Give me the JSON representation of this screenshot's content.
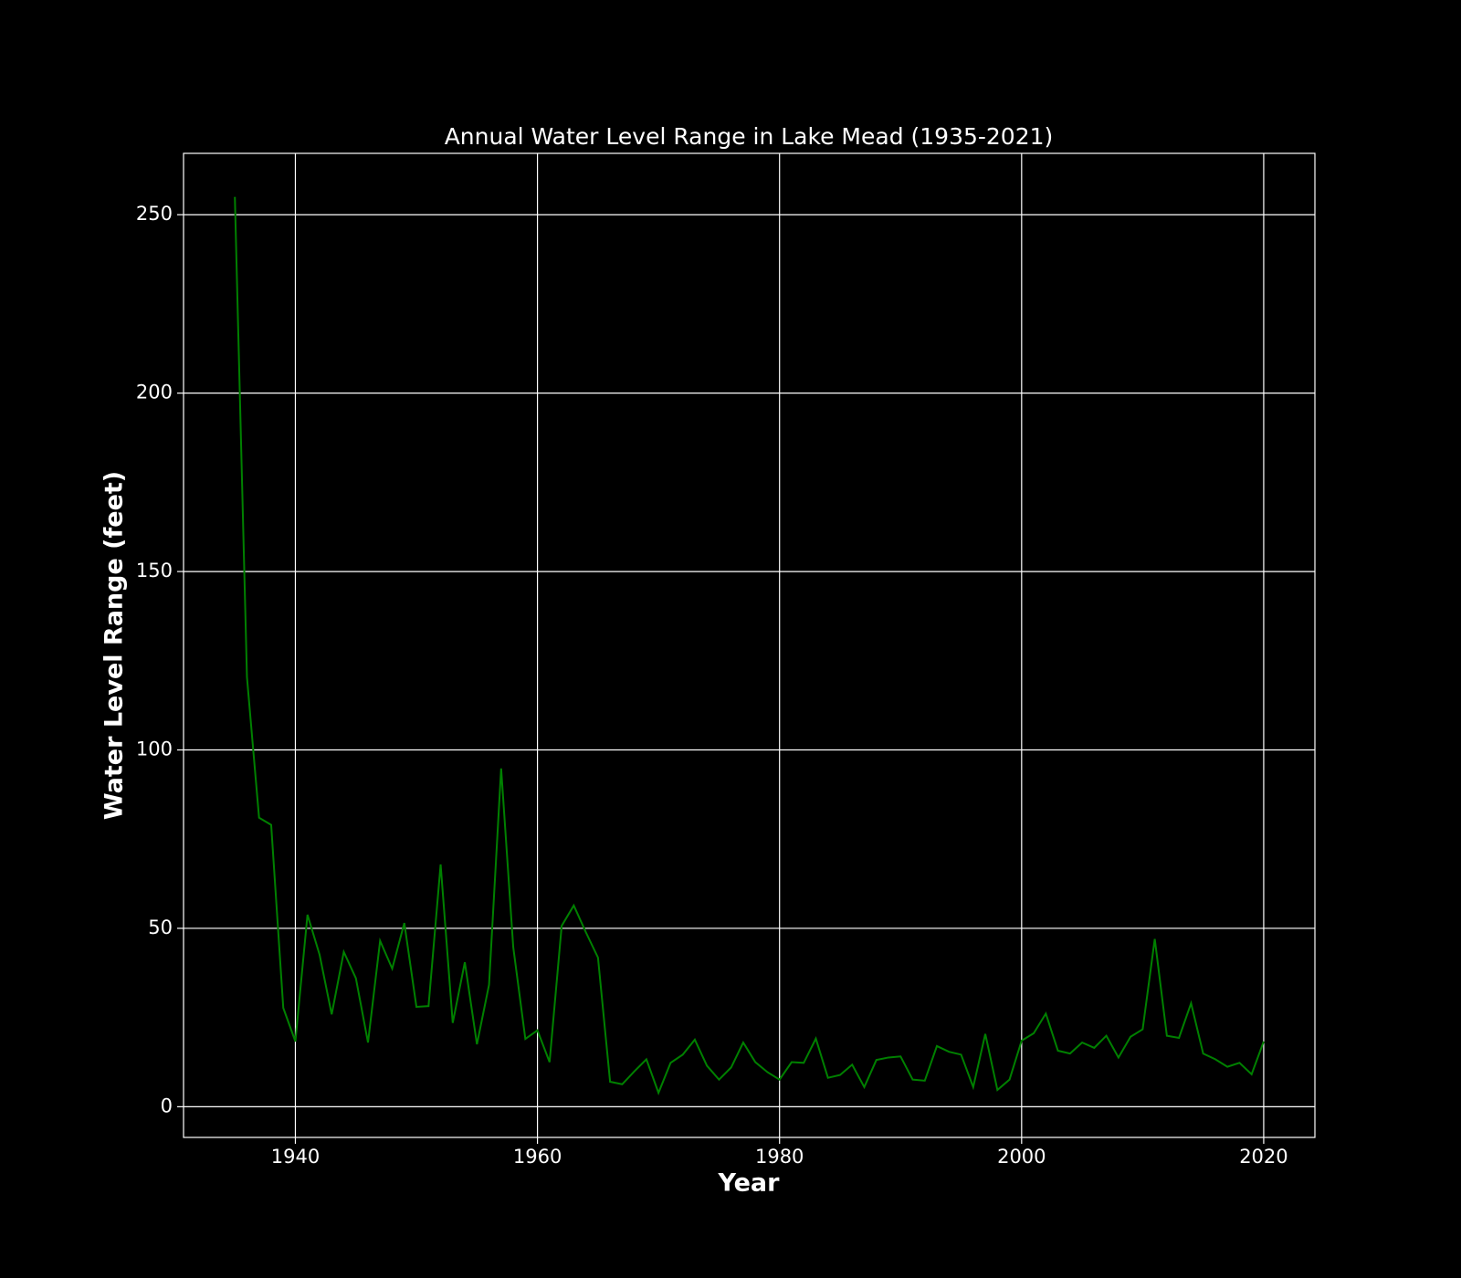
{
  "chart_data": {
    "type": "line",
    "title": "Annual Water Level Range in Lake Mead (1935-2021)",
    "x_label": "Year",
    "y_label": "Water Level Range (feet)",
    "x": [
      1935,
      1936,
      1937,
      1938,
      1939,
      1940,
      1941,
      1942,
      1943,
      1944,
      1945,
      1946,
      1947,
      1948,
      1949,
      1950,
      1951,
      1952,
      1953,
      1954,
      1955,
      1956,
      1957,
      1958,
      1959,
      1960,
      1961,
      1962,
      1963,
      1964,
      1965,
      1966,
      1967,
      1968,
      1969,
      1970,
      1971,
      1972,
      1973,
      1974,
      1975,
      1976,
      1977,
      1978,
      1979,
      1980,
      1981,
      1982,
      1983,
      1984,
      1985,
      1986,
      1987,
      1988,
      1989,
      1990,
      1991,
      1992,
      1993,
      1994,
      1995,
      1996,
      1997,
      1998,
      1999,
      2000,
      2001,
      2002,
      2003,
      2004,
      2005,
      2006,
      2007,
      2008,
      2009,
      2010,
      2011,
      2012,
      2013,
      2014,
      2015,
      2016,
      2017,
      2018,
      2019,
      2020
    ],
    "series": [
      {
        "name": "Water Level Range",
        "color": "#008000",
        "values": [
          255,
          120.4,
          81,
          79,
          27.7,
          18.3,
          53.8,
          42.6,
          25.9,
          43.4,
          36,
          18,
          46.5,
          38.7,
          51.5,
          28,
          28.2,
          67.9,
          23.5,
          40.5,
          17.5,
          34.2,
          94.8,
          44.7,
          19,
          21.4,
          12.5,
          50.7,
          56.4,
          48.9,
          41.8,
          7,
          6.3,
          9.9,
          13.3,
          3.9,
          12.3,
          14.6,
          18.8,
          11.5,
          7.6,
          11,
          18,
          12.5,
          9.7,
          7.6,
          12.5,
          12.3,
          19.1,
          8.1,
          8.9,
          11.8,
          5.5,
          13.1,
          13.8,
          14.1,
          7.6,
          7.3,
          17,
          15.4,
          14.6,
          5.5,
          20.4,
          4.7,
          7.6,
          18.5,
          20.6,
          26.1,
          15.7,
          14.9,
          18,
          16.5,
          19.9,
          13.8,
          19.6,
          21.7,
          47,
          19.9,
          19.3,
          29,
          14.9,
          13.3,
          11.2,
          12.3,
          9.1,
          18.3
        ]
      }
    ],
    "xlim": [
      1930.76,
      2024.23
    ],
    "xticks": [
      1940,
      1960,
      1980,
      2000,
      2020
    ],
    "ylim": [
      -8.6,
      267.2
    ],
    "yticks": [
      0,
      50,
      100,
      150,
      200,
      250
    ],
    "grid": true
  }
}
